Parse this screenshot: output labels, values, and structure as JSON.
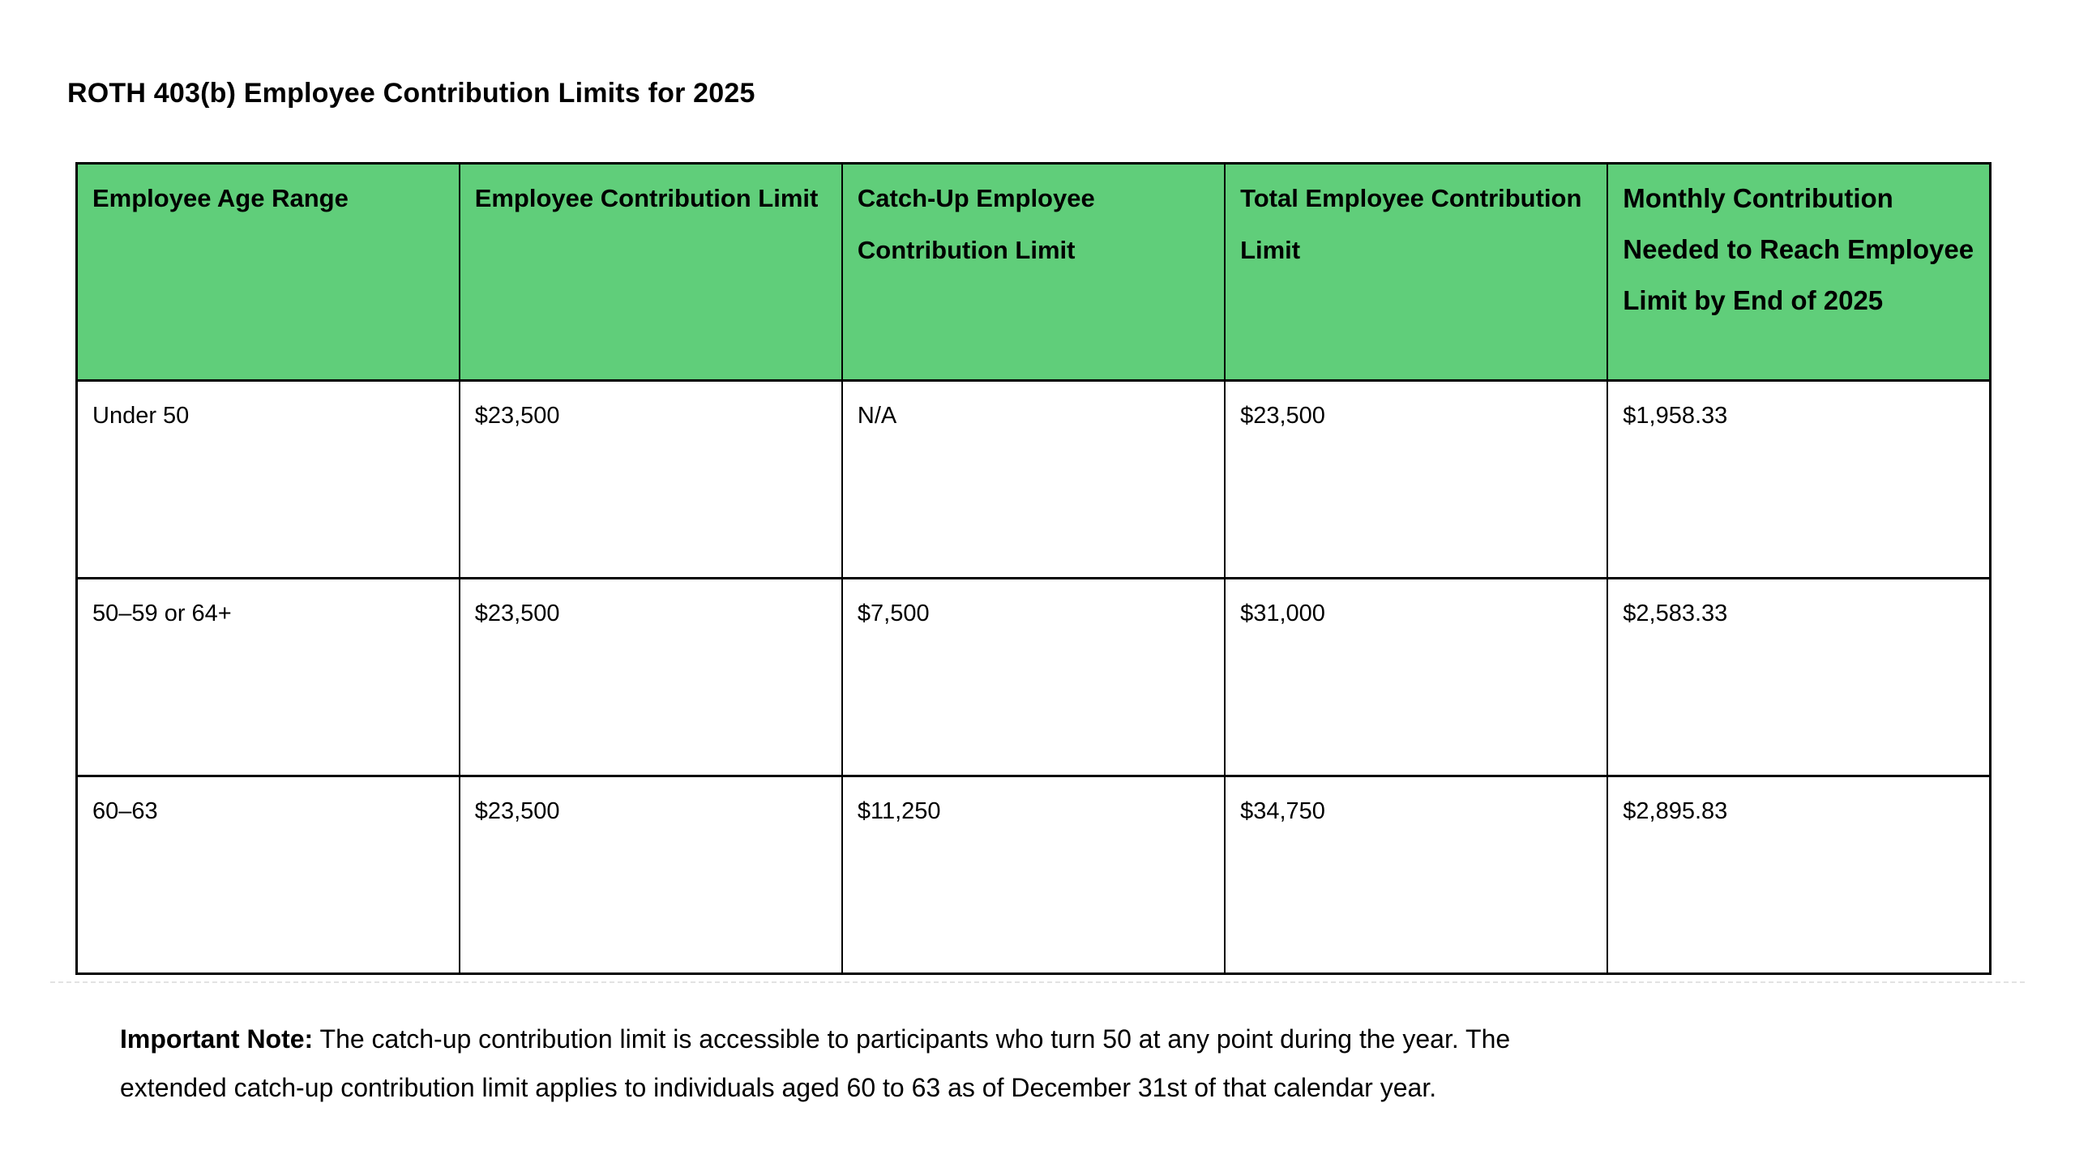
{
  "title": "ROTH 403(b) Employee Contribution Limits for 2025",
  "table": {
    "header_bg": "#60CE7A",
    "border_color": "#000000",
    "columns": [
      "Employee Age Range",
      "Employee Contribution Limit",
      "Catch-Up Employee Contribution Limit",
      "Total Employee Contribution Limit",
      "Monthly Contribution Needed to Reach Employee Limit by End of 2025"
    ],
    "rows": [
      {
        "cells": [
          "Under 50",
          "$23,500",
          "N/A",
          "$23,500",
          "$1,958.33"
        ]
      },
      {
        "cells": [
          "50–59 or 64+",
          "$23,500",
          "$7,500",
          "$31,000",
          "$2,583.33"
        ]
      },
      {
        "cells": [
          "60–63",
          "$23,500",
          "$11,250",
          "$34,750",
          "$2,895.83"
        ]
      }
    ]
  },
  "note": {
    "label": "Important Note:",
    "line1": "The catch-up contribution limit is accessible to participants who turn 50 at any point during the year. The",
    "line2": "extended catch-up contribution limit applies to individuals aged 60 to 63 as of December 31st of that calendar year."
  }
}
